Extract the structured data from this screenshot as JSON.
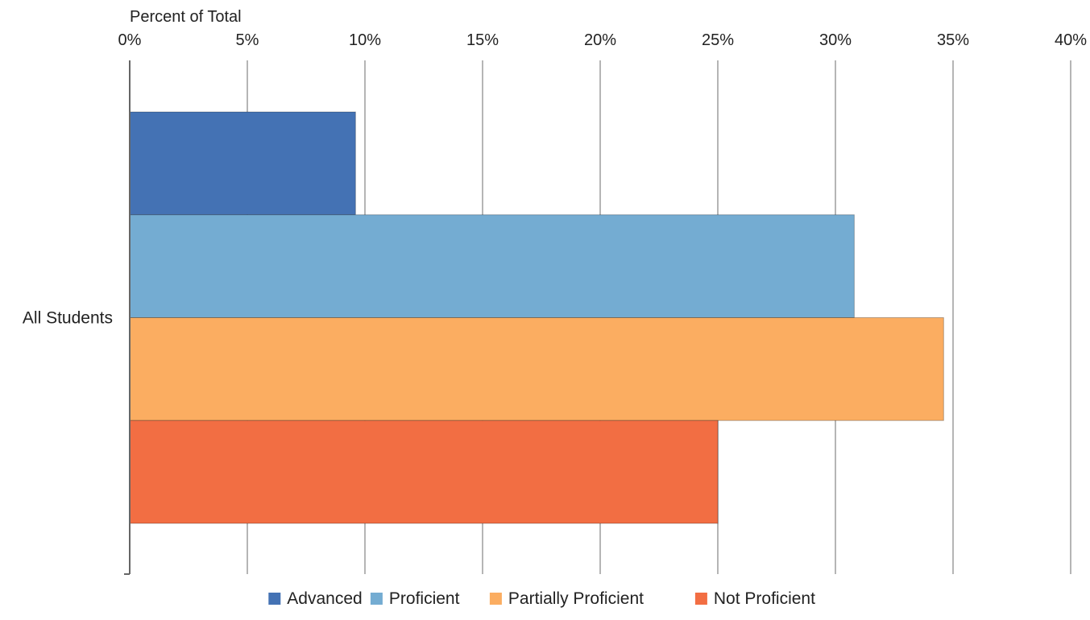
{
  "chart_data": {
    "type": "bar",
    "orientation": "horizontal",
    "title": "",
    "xlabel": "Percent of Total",
    "ylabel": "",
    "xlim": [
      0,
      40
    ],
    "x_ticks": [
      "0%",
      "5%",
      "10%",
      "15%",
      "20%",
      "25%",
      "30%",
      "35%",
      "40%"
    ],
    "x_tick_values": [
      0,
      5,
      10,
      15,
      20,
      25,
      30,
      35,
      40
    ],
    "grid": true,
    "legend_position": "bottom",
    "categories": [
      "All Students"
    ],
    "series": [
      {
        "name": "Advanced",
        "values": [
          9.6
        ],
        "color": "#4472b4"
      },
      {
        "name": "Proficient",
        "values": [
          30.8
        ],
        "color": "#74acd2"
      },
      {
        "name": "Partially Proficient",
        "values": [
          34.6
        ],
        "color": "#fbad61"
      },
      {
        "name": "Not Proficient",
        "values": [
          25.0
        ],
        "color": "#f26e43"
      }
    ]
  }
}
